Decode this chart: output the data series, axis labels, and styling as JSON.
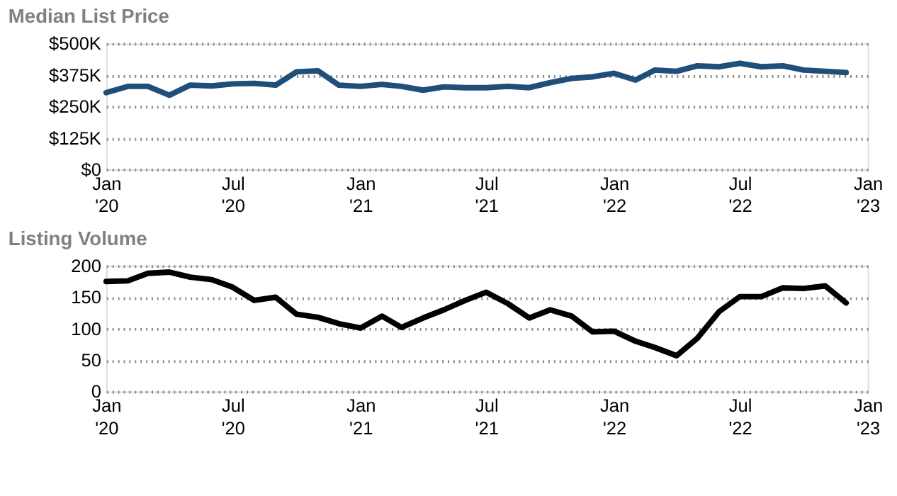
{
  "chart_data": [
    {
      "type": "line",
      "title": "Median List Price",
      "x": [
        "2020-01",
        "2020-02",
        "2020-03",
        "2020-04",
        "2020-05",
        "2020-06",
        "2020-07",
        "2020-08",
        "2020-09",
        "2020-10",
        "2020-11",
        "2020-12",
        "2021-01",
        "2021-02",
        "2021-03",
        "2021-04",
        "2021-05",
        "2021-06",
        "2021-07",
        "2021-08",
        "2021-09",
        "2021-10",
        "2021-11",
        "2021-12",
        "2022-01",
        "2022-02",
        "2022-03",
        "2022-04",
        "2022-05",
        "2022-06",
        "2022-07",
        "2022-08",
        "2022-09",
        "2022-10",
        "2022-11",
        "2022-12"
      ],
      "series": [
        {
          "color": "#1f4e79",
          "values": [
            305,
            330,
            330,
            295,
            335,
            332,
            340,
            342,
            335,
            388,
            392,
            335,
            330,
            338,
            330,
            315,
            328,
            325,
            325,
            330,
            325,
            345,
            362,
            368,
            382,
            355,
            395,
            390,
            412,
            408,
            422,
            408,
            412,
            395,
            390,
            385
          ]
        }
      ],
      "xlim": [
        "2020-01",
        "2023-01"
      ],
      "xticks": [
        {
          "value": "2020-01",
          "label": "Jan\n'20"
        },
        {
          "value": "2020-07",
          "label": "Jul\n'20"
        },
        {
          "value": "2021-01",
          "label": "Jan\n'21"
        },
        {
          "value": "2021-07",
          "label": "Jul\n'21"
        },
        {
          "value": "2022-01",
          "label": "Jan\n'22"
        },
        {
          "value": "2022-07",
          "label": "Jul\n'22"
        },
        {
          "value": "2023-01",
          "label": "Jan\n'23"
        }
      ],
      "ylim": [
        0,
        500
      ],
      "yticks": [
        {
          "value": 0,
          "label": "$0"
        },
        {
          "value": 125,
          "label": "$125K"
        },
        {
          "value": 250,
          "label": "$250K"
        },
        {
          "value": 375,
          "label": "$375K"
        },
        {
          "value": 500,
          "label": "$500K"
        }
      ],
      "grid": "y"
    },
    {
      "type": "line",
      "title": "Listing Volume",
      "x": [
        "2020-01",
        "2020-02",
        "2020-03",
        "2020-04",
        "2020-05",
        "2020-06",
        "2020-07",
        "2020-08",
        "2020-09",
        "2020-10",
        "2020-11",
        "2020-12",
        "2021-01",
        "2021-02",
        "2021-03",
        "2021-04",
        "2021-05",
        "2021-06",
        "2021-07",
        "2021-08",
        "2021-09",
        "2021-10",
        "2021-11",
        "2021-12",
        "2022-01",
        "2022-02",
        "2022-03",
        "2022-04",
        "2022-05",
        "2022-06",
        "2022-07",
        "2022-08",
        "2022-09",
        "2022-10",
        "2022-11",
        "2022-12"
      ],
      "series": [
        {
          "color": "#000000",
          "values": [
            175,
            176,
            188,
            190,
            182,
            178,
            166,
            145,
            150,
            123,
            118,
            108,
            101,
            120,
            102,
            117,
            130,
            145,
            158,
            140,
            117,
            130,
            120,
            95,
            96,
            80,
            70,
            57,
            85,
            127,
            151,
            151,
            165,
            164,
            168,
            141
          ]
        }
      ],
      "xlim": [
        "2020-01",
        "2023-01"
      ],
      "xticks": [
        {
          "value": "2020-01",
          "label": "Jan\n'20"
        },
        {
          "value": "2020-07",
          "label": "Jul\n'20"
        },
        {
          "value": "2021-01",
          "label": "Jan\n'21"
        },
        {
          "value": "2021-07",
          "label": "Jul\n'21"
        },
        {
          "value": "2022-01",
          "label": "Jan\n'22"
        },
        {
          "value": "2022-07",
          "label": "Jul\n'22"
        },
        {
          "value": "2023-01",
          "label": "Jan\n'23"
        }
      ],
      "ylim": [
        0,
        200
      ],
      "yticks": [
        0,
        50,
        100,
        150,
        200
      ],
      "grid": "y"
    }
  ]
}
